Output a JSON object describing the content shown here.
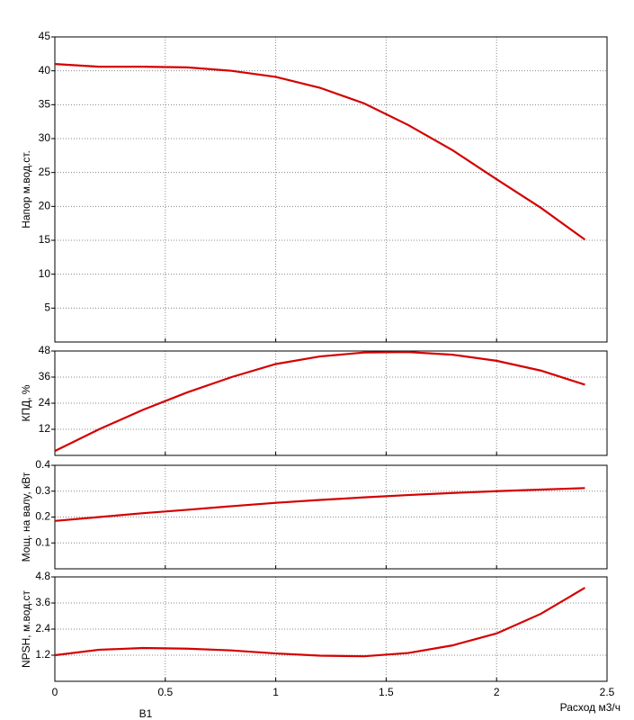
{
  "chart_data": [
    {
      "type": "line",
      "ylabel": "Напор м.вод.ст.",
      "x": [
        0,
        0.2,
        0.4,
        0.6,
        0.8,
        1.0,
        1.2,
        1.4,
        1.6,
        1.8,
        2.0,
        2.2,
        2.4
      ],
      "series": [
        {
          "name": "Напор",
          "color": "#d40000",
          "values": [
            41,
            40.6,
            40.6,
            40.5,
            40.0,
            39.1,
            37.5,
            35.2,
            32.0,
            28.3,
            24.0,
            19.8,
            15.1
          ]
        }
      ],
      "ylim": [
        0,
        45
      ],
      "yticks": [
        5,
        10,
        15,
        20,
        25,
        30,
        35,
        40,
        45
      ],
      "grid": true
    },
    {
      "type": "line",
      "ylabel": "КПД, %",
      "x": [
        0,
        0.2,
        0.4,
        0.6,
        0.8,
        1.0,
        1.2,
        1.4,
        1.6,
        1.8,
        2.0,
        2.2,
        2.4
      ],
      "series": [
        {
          "name": "КПД",
          "color": "#d40000",
          "values": [
            2,
            12,
            21,
            29,
            36,
            42,
            45.5,
            47.3,
            47.5,
            46.3,
            43.5,
            39,
            32.5
          ]
        }
      ],
      "ylim": [
        0,
        48
      ],
      "yticks": [
        12,
        24,
        36,
        48
      ],
      "grid": true
    },
    {
      "type": "line",
      "ylabel": "Мощ. на валу, кВт",
      "x": [
        0,
        0.2,
        0.4,
        0.6,
        0.8,
        1.0,
        1.2,
        1.4,
        1.6,
        1.8,
        2.0,
        2.2,
        2.4
      ],
      "series": [
        {
          "name": "Мощность",
          "color": "#d40000",
          "values": [
            0.185,
            0.2,
            0.215,
            0.228,
            0.242,
            0.255,
            0.266,
            0.276,
            0.285,
            0.293,
            0.3,
            0.306,
            0.312
          ]
        }
      ],
      "ylim": [
        0,
        0.4
      ],
      "yticks": [
        0.1,
        0.2,
        0.3,
        0.4
      ],
      "grid": true
    },
    {
      "type": "line",
      "ylabel": "NPSH, м.вод.ст",
      "xlabel": "Расход м3/ч",
      "x": [
        0,
        0.2,
        0.4,
        0.6,
        0.8,
        1.0,
        1.2,
        1.4,
        1.6,
        1.8,
        2.0,
        2.2,
        2.4
      ],
      "series": [
        {
          "name": "NPSH",
          "color": "#d40000",
          "values": [
            1.2,
            1.45,
            1.53,
            1.5,
            1.42,
            1.28,
            1.18,
            1.15,
            1.3,
            1.65,
            2.2,
            3.1,
            4.3
          ]
        }
      ],
      "ylim": [
        0,
        4.8
      ],
      "yticks": [
        1.2,
        2.4,
        3.6,
        4.8
      ],
      "grid": true,
      "xlim": [
        0,
        2.5
      ],
      "xticks": [
        0,
        0.5,
        1,
        1.5,
        2,
        2.5
      ]
    }
  ],
  "footer_label": "В1"
}
